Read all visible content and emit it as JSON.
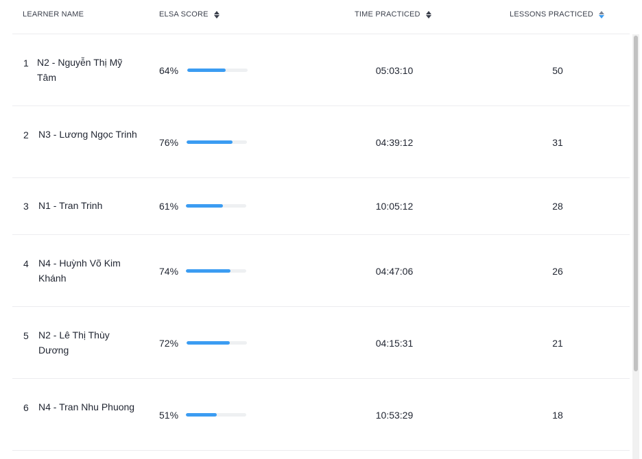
{
  "headers": {
    "learner_name": "LEARNER NAME",
    "elsa_score": "ELSA SCORE",
    "time_practiced": "TIME PRACTICED",
    "lessons_practiced": "LESSONS PRACTICED"
  },
  "sort": {
    "active_column": "lessons_practiced",
    "direction": "descending"
  },
  "colors": {
    "accent": "#3b9cf2",
    "bar_track": "#eef0f2",
    "divider": "#ececef"
  },
  "rows": [
    {
      "rank": "1",
      "name": "N2 - Nguyễn Thị Mỹ Tâm",
      "score": "64%",
      "score_value": 0.64,
      "time": "05:03:10",
      "lessons": "50"
    },
    {
      "rank": "2",
      "name": "N3 - Lương Ngọc Trinh",
      "score": "76%",
      "score_value": 0.76,
      "time": "04:39:12",
      "lessons": "31"
    },
    {
      "rank": "3",
      "name": "N1 - Tran Trinh",
      "score": "61%",
      "score_value": 0.61,
      "time": "10:05:12",
      "lessons": "28"
    },
    {
      "rank": "4",
      "name": "N4 - Huỳnh Võ Kim Khánh",
      "score": "74%",
      "score_value": 0.74,
      "time": "04:47:06",
      "lessons": "26"
    },
    {
      "rank": "5",
      "name": "N2 - Lê Thị Thùy Dương",
      "score": "72%",
      "score_value": 0.72,
      "time": "04:15:31",
      "lessons": "21"
    },
    {
      "rank": "6",
      "name": "N4 - Tran Nhu Phuong",
      "score": "51%",
      "score_value": 0.51,
      "time": "10:53:29",
      "lessons": "18"
    }
  ]
}
